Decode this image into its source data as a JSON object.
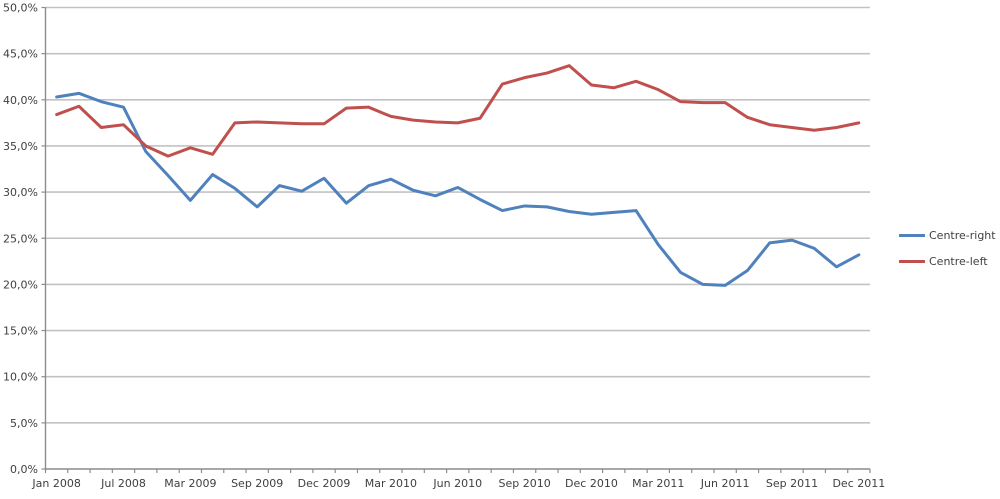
{
  "chart_data": {
    "type": "line",
    "title": "",
    "xlabel": "",
    "ylabel": "",
    "n_points": 37,
    "grid": true,
    "legend_position": "right",
    "y_axis": {
      "min": 0,
      "max": 50,
      "step": 5,
      "tick_labels": [
        "0,0%",
        "5,0%",
        "10,0%",
        "15,0%",
        "20,0%",
        "25,0%",
        "30,0%",
        "35,0%",
        "40,0%",
        "45,0%",
        "50,0%"
      ]
    },
    "x_axis": {
      "tick_labels": [
        {
          "index": 0,
          "label": "Jan 2008"
        },
        {
          "index": 3,
          "label": "Jul 2008"
        },
        {
          "index": 6,
          "label": "Mar 2009"
        },
        {
          "index": 9,
          "label": "Sep 2009"
        },
        {
          "index": 12,
          "label": "Dec 2009"
        },
        {
          "index": 15,
          "label": "Mar 2010"
        },
        {
          "index": 18,
          "label": "Jun 2010"
        },
        {
          "index": 21,
          "label": "Sep 2010"
        },
        {
          "index": 24,
          "label": "Dec 2010"
        },
        {
          "index": 27,
          "label": "Mar 2011"
        },
        {
          "index": 30,
          "label": "Jun 2011"
        },
        {
          "index": 33,
          "label": "Sep 2011"
        },
        {
          "index": 36,
          "label": "Dec 2011"
        }
      ]
    },
    "series": [
      {
        "name": "Centre-right",
        "color": "#4F81BD",
        "values": [
          40.3,
          40.7,
          39.8,
          39.2,
          34.4,
          31.8,
          29.1,
          31.9,
          30.4,
          28.4,
          30.7,
          30.1,
          31.5,
          28.8,
          30.7,
          31.4,
          30.2,
          29.6,
          30.5,
          29.2,
          28.0,
          28.5,
          28.4,
          27.9,
          27.6,
          27.8,
          28.0,
          24.3,
          21.3,
          20.0,
          19.9,
          21.5,
          24.5,
          24.8,
          23.9,
          21.9,
          23.2
        ]
      },
      {
        "name": "Centre-left",
        "color": "#C0504D",
        "values": [
          38.4,
          39.3,
          37.0,
          37.3,
          35.0,
          33.9,
          34.8,
          34.1,
          37.5,
          37.6,
          37.5,
          37.4,
          37.4,
          39.1,
          39.2,
          38.2,
          37.8,
          37.6,
          37.5,
          38.0,
          41.7,
          42.4,
          42.9,
          43.7,
          41.6,
          41.3,
          42.0,
          41.1,
          39.8,
          39.7,
          39.7,
          38.1,
          37.3,
          37.0,
          36.7,
          37.0,
          37.5
        ]
      }
    ],
    "style": {
      "gridline_color": "#c2c2c2",
      "axis_color": "#8c8c8c",
      "tick_label_color": "#3f3f3f",
      "line_width": 3
    }
  },
  "legend": {
    "items": [
      {
        "label": "Centre-right"
      },
      {
        "label": "Centre-left"
      }
    ]
  }
}
